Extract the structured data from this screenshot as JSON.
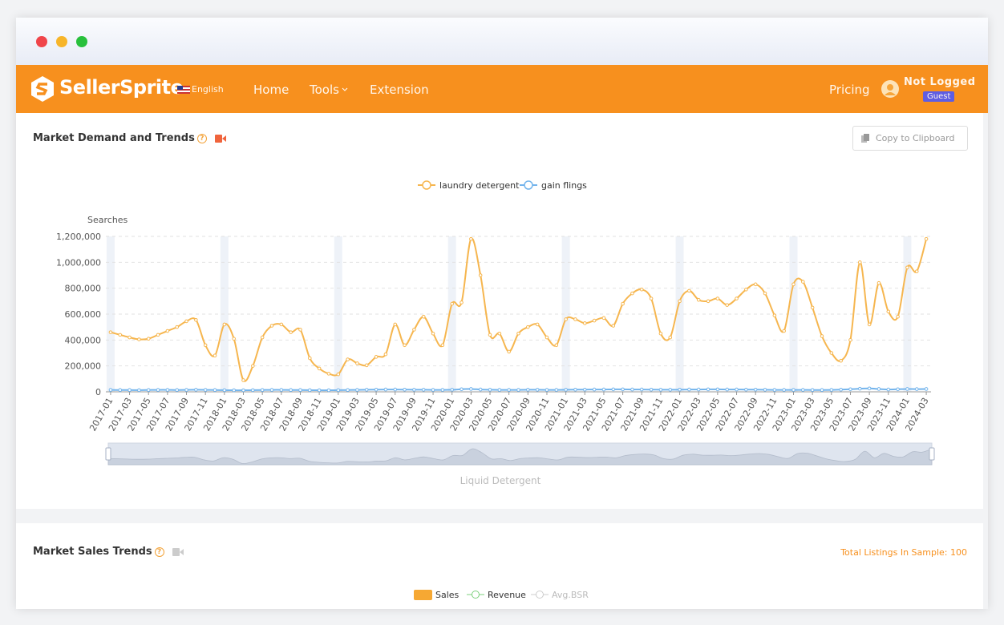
{
  "nav": {
    "brand": "SellerSprite",
    "language": "English",
    "links": [
      "Home",
      "Tools",
      "Extension"
    ],
    "pricing": "Pricing",
    "user": "Not Logged",
    "badge": "Guest"
  },
  "demand_section": {
    "title": "Market Demand and Trends",
    "copy_button": "Copy to Clipboard"
  },
  "chart_data": {
    "type": "line",
    "y_label": "Searches",
    "x_label": "Liquid Detergent",
    "categories": [
      "2017-01",
      null,
      "2017-03",
      null,
      "2017-05",
      null,
      "2017-07",
      null,
      "2017-09",
      null,
      "2017-11",
      null,
      "2018-01",
      null,
      "2018-03",
      null,
      "2018-05",
      null,
      "2018-07",
      null,
      "2018-09",
      null,
      "2018-11",
      null,
      "2019-01",
      null,
      "2019-03",
      null,
      "2019-05",
      null,
      "2019-07",
      null,
      "2019-09",
      null,
      "2019-11",
      null,
      "2020-01",
      null,
      "2020-03",
      null,
      "2020-05",
      null,
      "2020-07",
      null,
      "2020-09",
      null,
      "2020-11",
      null,
      "2021-01",
      null,
      "2021-03",
      null,
      "2021-05",
      null,
      "2021-07",
      null,
      "2021-09",
      null,
      "2021-11",
      null,
      "2022-01",
      null,
      "2022-03",
      null,
      "2022-05",
      null,
      "2022-07",
      null,
      "2022-09",
      null,
      "2022-11",
      null,
      "2023-01",
      null,
      "2023-03",
      null,
      "2023-05",
      null,
      "2023-07",
      null,
      "2023-09",
      null,
      "2023-11",
      null,
      "2024-01",
      null,
      "2024-03"
    ],
    "series": [
      {
        "name": "laundry detergent",
        "color": "#f6b64f",
        "values": [
          460000,
          440000,
          420000,
          405000,
          410000,
          440000,
          470000,
          500000,
          545000,
          555000,
          360000,
          280000,
          520000,
          410000,
          90000,
          200000,
          420000,
          510000,
          520000,
          460000,
          480000,
          260000,
          180000,
          140000,
          135000,
          250000,
          220000,
          205000,
          270000,
          290000,
          520000,
          360000,
          480000,
          580000,
          450000,
          360000,
          680000,
          690000,
          1180000,
          900000,
          440000,
          450000,
          310000,
          450000,
          500000,
          520000,
          420000,
          360000,
          560000,
          560000,
          530000,
          550000,
          570000,
          510000,
          680000,
          760000,
          790000,
          720000,
          450000,
          420000,
          700000,
          780000,
          710000,
          700000,
          720000,
          670000,
          720000,
          790000,
          830000,
          760000,
          590000,
          470000,
          830000,
          850000,
          650000,
          430000,
          300000,
          240000,
          400000,
          1000000,
          520000,
          840000,
          620000,
          580000,
          960000,
          930000,
          1180000
        ]
      },
      {
        "name": "gain flings",
        "color": "#73b4ec",
        "values": [
          15000,
          14000,
          14000,
          13000,
          14000,
          15000,
          15000,
          14000,
          15000,
          16000,
          15000,
          14000,
          13000,
          12000,
          12000,
          13000,
          14000,
          15000,
          15000,
          14000,
          14000,
          13000,
          12000,
          12000,
          13000,
          14000,
          15000,
          16000,
          17000,
          18000,
          18000,
          17000,
          16000,
          16000,
          15000,
          15000,
          16000,
          20000,
          22000,
          18000,
          16000,
          15000,
          15000,
          15000,
          16000,
          16000,
          15000,
          15000,
          16000,
          17000,
          17000,
          18000,
          18000,
          19000,
          19000,
          18000,
          18000,
          17000,
          16000,
          16000,
          17000,
          18000,
          18000,
          19000,
          19000,
          18000,
          18000,
          17000,
          17000,
          16000,
          15000,
          15000,
          15000,
          15000,
          14000,
          14000,
          15000,
          17000,
          20000,
          24000,
          26000,
          22000,
          18000,
          20000,
          22000,
          21000,
          22000
        ]
      }
    ],
    "ylim": [
      0,
      1200000
    ],
    "yticks": [
      0,
      {
        "value": 200000,
        "label": "200,000"
      },
      {
        "value": 400000,
        "label": "400,000"
      },
      {
        "value": 600000,
        "label": "600,000"
      },
      {
        "value": 800000,
        "label": "800,000"
      },
      {
        "value": 1000000,
        "label": "1,000,000"
      },
      {
        "value": 1200000,
        "label": "1,200,000"
      }
    ],
    "grid": true,
    "legend": "top"
  },
  "sales_section": {
    "title": "Market Sales Trends",
    "total_listings": "Total Listings In Sample: 100",
    "legend": [
      "Sales",
      "Revenue",
      "Avg.BSR"
    ]
  }
}
